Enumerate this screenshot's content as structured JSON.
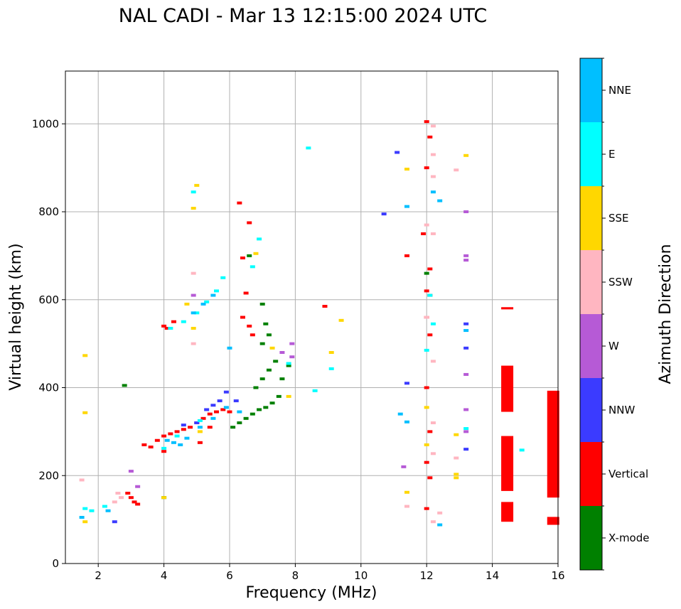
{
  "chart_data": {
    "type": "scatter",
    "title": "NAL CADI - Mar 13 12:15:00 2024 UTC",
    "xlabel": "Frequency (MHz)",
    "ylabel": "Virtual height (km)",
    "xlim": [
      1,
      16
    ],
    "ylim": [
      0,
      1120
    ],
    "xticks": [
      2,
      4,
      6,
      8,
      10,
      12,
      14,
      16
    ],
    "yticks": [
      0,
      200,
      400,
      600,
      800,
      1000
    ],
    "grid": true,
    "colorbar": {
      "label": "Azimuth Direction",
      "categories": [
        {
          "name": "X-mode",
          "color": "#008000"
        },
        {
          "name": "Vertical",
          "color": "#ff0000"
        },
        {
          "name": "NNW",
          "color": "#3b3bff"
        },
        {
          "name": "W",
          "color": "#b65ad6"
        },
        {
          "name": "SSW",
          "color": "#ffb6c1"
        },
        {
          "name": "SSE",
          "color": "#ffd700"
        },
        {
          "name": "E",
          "color": "#00ffff"
        },
        {
          "name": "NNE",
          "color": "#00bfff"
        }
      ]
    },
    "series": [
      {
        "name": "Vertical",
        "points": [
          [
            3.0,
            150
          ],
          [
            3.1,
            140
          ],
          [
            3.2,
            135
          ],
          [
            2.9,
            160
          ],
          [
            3.4,
            270
          ],
          [
            3.6,
            265
          ],
          [
            3.8,
            280
          ],
          [
            4.0,
            290
          ],
          [
            4.2,
            295
          ],
          [
            4.4,
            300
          ],
          [
            4.6,
            305
          ],
          [
            4.8,
            310
          ],
          [
            5.0,
            320
          ],
          [
            5.2,
            330
          ],
          [
            5.4,
            340
          ],
          [
            5.6,
            345
          ],
          [
            5.8,
            350
          ],
          [
            6.0,
            345
          ],
          [
            4.0,
            540
          ],
          [
            4.3,
            550
          ],
          [
            4.0,
            255
          ],
          [
            6.4,
            560
          ],
          [
            6.5,
            615
          ],
          [
            6.6,
            540
          ],
          [
            6.7,
            520
          ],
          [
            6.4,
            695
          ],
          [
            6.6,
            775
          ],
          [
            6.3,
            820
          ],
          [
            5.1,
            275
          ],
          [
            5.4,
            310
          ],
          [
            4.1,
            535
          ],
          [
            8.9,
            585
          ],
          [
            12.0,
            1005
          ],
          [
            12.1,
            970
          ],
          [
            12.0,
            900
          ],
          [
            11.9,
            750
          ],
          [
            12.0,
            620
          ],
          [
            12.1,
            610
          ],
          [
            12.0,
            560
          ],
          [
            12.1,
            520
          ],
          [
            12.0,
            400
          ],
          [
            12.1,
            300
          ],
          [
            12.0,
            230
          ],
          [
            12.1,
            195
          ],
          [
            12.0,
            125
          ],
          [
            11.4,
            700
          ],
          [
            12.1,
            670
          ]
        ]
      },
      {
        "name": "X-mode",
        "points": [
          [
            6.1,
            310
          ],
          [
            6.3,
            320
          ],
          [
            6.5,
            330
          ],
          [
            6.7,
            340
          ],
          [
            6.9,
            350
          ],
          [
            7.1,
            355
          ],
          [
            7.3,
            365
          ],
          [
            7.5,
            380
          ],
          [
            6.8,
            400
          ],
          [
            7.0,
            420
          ],
          [
            7.2,
            440
          ],
          [
            7.4,
            460
          ],
          [
            7.6,
            420
          ],
          [
            7.8,
            450
          ],
          [
            7.0,
            500
          ],
          [
            7.2,
            520
          ],
          [
            7.1,
            545
          ],
          [
            6.6,
            700
          ],
          [
            7.0,
            590
          ],
          [
            4.0,
            150
          ],
          [
            2.8,
            405
          ],
          [
            12.0,
            660
          ]
        ]
      },
      {
        "name": "NNW",
        "points": [
          [
            5.3,
            350
          ],
          [
            5.5,
            360
          ],
          [
            5.7,
            370
          ],
          [
            5.0,
            320
          ],
          [
            4.6,
            315
          ],
          [
            5.9,
            390
          ],
          [
            6.2,
            370
          ],
          [
            11.1,
            935
          ],
          [
            10.7,
            795
          ],
          [
            13.2,
            545
          ],
          [
            13.2,
            490
          ],
          [
            13.2,
            260
          ],
          [
            2.5,
            95
          ],
          [
            11.4,
            410
          ]
        ]
      },
      {
        "name": "W",
        "points": [
          [
            3.0,
            210
          ],
          [
            3.2,
            175
          ],
          [
            7.9,
            500
          ],
          [
            7.9,
            470
          ],
          [
            13.2,
            800
          ],
          [
            13.2,
            700
          ],
          [
            13.2,
            690
          ],
          [
            13.2,
            430
          ],
          [
            13.2,
            350
          ],
          [
            13.2,
            300
          ],
          [
            11.3,
            220
          ],
          [
            4.9,
            610
          ],
          [
            7.6,
            480
          ]
        ]
      },
      {
        "name": "SSW",
        "points": [
          [
            2.6,
            160
          ],
          [
            2.7,
            150
          ],
          [
            2.5,
            140
          ],
          [
            1.5,
            190
          ],
          [
            4.9,
            660
          ],
          [
            4.9,
            500
          ],
          [
            12.2,
            995
          ],
          [
            12.2,
            930
          ],
          [
            12.2,
            880
          ],
          [
            12.0,
            770
          ],
          [
            12.2,
            750
          ],
          [
            12.0,
            560
          ],
          [
            12.2,
            460
          ],
          [
            12.2,
            320
          ],
          [
            12.2,
            250
          ],
          [
            12.4,
            115
          ],
          [
            12.2,
            95
          ],
          [
            12.9,
            895
          ],
          [
            12.9,
            240
          ],
          [
            11.4,
            130
          ]
        ]
      },
      {
        "name": "SSE",
        "points": [
          [
            5.0,
            860
          ],
          [
            4.9,
            808
          ],
          [
            6.8,
            705
          ],
          [
            9.1,
            480
          ],
          [
            9.4,
            553
          ],
          [
            11.4,
            897
          ],
          [
            13.2,
            928
          ],
          [
            12.9,
            293
          ],
          [
            12.9,
            203
          ],
          [
            12.9,
            195
          ],
          [
            12.0,
            270
          ],
          [
            12.0,
            355
          ],
          [
            4.9,
            535
          ],
          [
            1.6,
            343
          ],
          [
            1.6,
            473
          ],
          [
            1.6,
            95
          ],
          [
            11.4,
            162
          ],
          [
            4.0,
            150
          ],
          [
            7.3,
            490
          ],
          [
            7.8,
            380
          ],
          [
            5.1,
            300
          ],
          [
            4.7,
            590
          ]
        ]
      },
      {
        "name": "E",
        "points": [
          [
            4.2,
            535
          ],
          [
            4.6,
            550
          ],
          [
            5.0,
            570
          ],
          [
            5.3,
            595
          ],
          [
            5.6,
            620
          ],
          [
            5.8,
            650
          ],
          [
            4.9,
            845
          ],
          [
            6.7,
            675
          ],
          [
            6.9,
            738
          ],
          [
            8.4,
            945
          ],
          [
            9.1,
            443
          ],
          [
            8.6,
            393
          ],
          [
            14.9,
            258
          ],
          [
            1.6,
            125
          ],
          [
            1.8,
            120
          ],
          [
            2.2,
            130
          ],
          [
            4.4,
            290
          ],
          [
            5.1,
            325
          ],
          [
            4.0,
            262
          ],
          [
            7.8,
            455
          ],
          [
            12.2,
            545
          ],
          [
            12.0,
            485
          ],
          [
            13.2,
            307
          ],
          [
            12.1,
            610
          ]
        ]
      },
      {
        "name": "NNE",
        "points": [
          [
            4.1,
            280
          ],
          [
            4.3,
            275
          ],
          [
            4.5,
            270
          ],
          [
            4.7,
            285
          ],
          [
            5.1,
            310
          ],
          [
            5.5,
            330
          ],
          [
            5.9,
            355
          ],
          [
            6.3,
            345
          ],
          [
            4.9,
            570
          ],
          [
            5.2,
            590
          ],
          [
            5.5,
            610
          ],
          [
            12.2,
            845
          ],
          [
            12.4,
            825
          ],
          [
            11.4,
            812
          ],
          [
            12.4,
            88
          ],
          [
            11.2,
            340
          ],
          [
            11.4,
            322
          ],
          [
            13.2,
            530
          ],
          [
            1.5,
            105
          ],
          [
            2.3,
            120
          ],
          [
            6.0,
            490
          ]
        ]
      }
    ],
    "bars": [
      {
        "name": "Vertical",
        "x": 14.4,
        "y0": 345,
        "y1": 450
      },
      {
        "name": "Vertical",
        "x": 14.4,
        "y0": 165,
        "y1": 290
      },
      {
        "name": "Vertical",
        "x": 14.4,
        "y0": 95,
        "y1": 140
      },
      {
        "name": "Vertical",
        "x": 14.4,
        "y0": 578,
        "y1": 583
      },
      {
        "name": "Vertical",
        "x": 15.8,
        "y0": 150,
        "y1": 393
      },
      {
        "name": "Vertical",
        "x": 15.8,
        "y0": 88,
        "y1": 106
      }
    ]
  }
}
